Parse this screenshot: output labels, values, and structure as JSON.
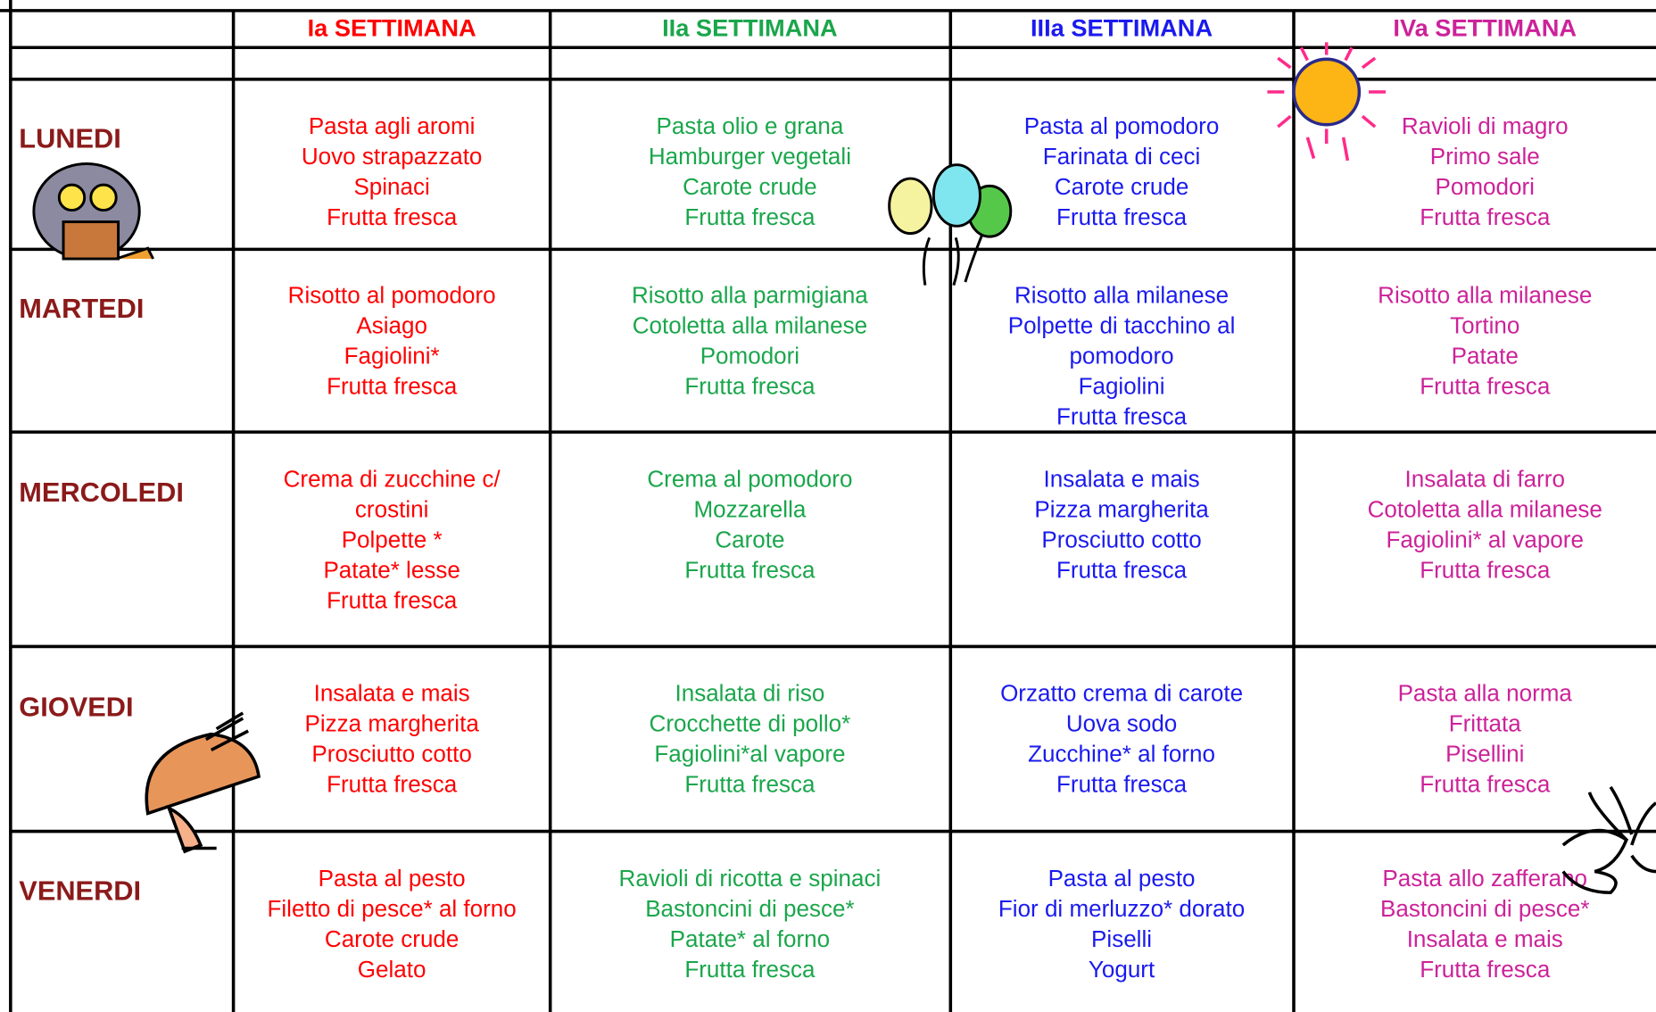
{
  "table": {
    "headers": [
      "Ia SETTIMANA",
      "IIa  SETTIMANA",
      "IIIa  SETTIMANA",
      "IVa  SETTIMANA"
    ],
    "rows": [
      {
        "day": "LUNEDI",
        "cells": [
          [
            "Pasta agli aromi",
            "Uovo strapazzato",
            "Spinaci",
            "Frutta fresca"
          ],
          [
            "Pasta olio e grana",
            "Hamburger vegetali",
            "Carote crude",
            "Frutta fresca"
          ],
          [
            "Pasta al pomodoro",
            "Farinata di ceci",
            "Carote crude",
            "Frutta fresca"
          ],
          [
            "Ravioli di magro",
            "Primo sale",
            "Pomodori",
            "Frutta fresca"
          ]
        ]
      },
      {
        "day": "MARTEDI",
        "cells": [
          [
            "Risotto al pomodoro",
            "Asiago",
            "Fagiolini*",
            "Frutta fresca"
          ],
          [
            "Risotto alla parmigiana",
            "Cotoletta alla milanese",
            "Pomodori",
            "Frutta fresca"
          ],
          [
            "Risotto alla milanese",
            "Polpette di tacchino al",
            "pomodoro",
            "Fagiolini",
            "Frutta fresca"
          ],
          [
            "Risotto alla milanese",
            "Tortino",
            "Patate",
            "Frutta fresca"
          ]
        ]
      },
      {
        "day": "MERCOLEDI",
        "cells": [
          [
            "Crema di zucchine c/",
            "crostini",
            "Polpette *",
            "Patate* lesse",
            "Frutta fresca"
          ],
          [
            "Crema al pomodoro",
            "Mozzarella",
            "Carote",
            "Frutta fresca"
          ],
          [
            "Insalata e mais",
            "Pizza margherita",
            "Prosciutto cotto",
            "Frutta fresca"
          ],
          [
            "Insalata di farro",
            "Cotoletta alla milanese",
            "Fagiolini* al vapore",
            "Frutta fresca"
          ]
        ]
      },
      {
        "day": "GIOVEDI",
        "cells": [
          [
            "Insalata e mais",
            "Pizza margherita",
            "Prosciutto cotto",
            "Frutta fresca"
          ],
          [
            "Insalata di riso",
            "Crocchette di pollo*",
            "Fagiolini*al vapore",
            "Frutta fresca"
          ],
          [
            "Orzatto crema di carote",
            "Uova sodo",
            "Zucchine* al forno",
            "Frutta fresca"
          ],
          [
            "Pasta alla norma",
            "Frittata",
            "Pisellini",
            "Frutta fresca"
          ]
        ]
      },
      {
        "day": "VENERDI",
        "cells": [
          [
            "Pasta al pesto",
            "Filetto di pesce* al forno",
            "Carote crude",
            "Gelato"
          ],
          [
            "Ravioli di ricotta e spinaci",
            "Bastoncini di pesce*",
            "Patate* al forno",
            "Frutta fresca"
          ],
          [
            "Pasta al pesto",
            "Fior di merluzzo* dorato",
            "Piselli",
            "Yogurt"
          ],
          [
            "Pasta allo zafferano",
            "Bastoncini di pesce*",
            "Insalata e mais",
            "Frutta fresca"
          ]
        ]
      }
    ]
  }
}
